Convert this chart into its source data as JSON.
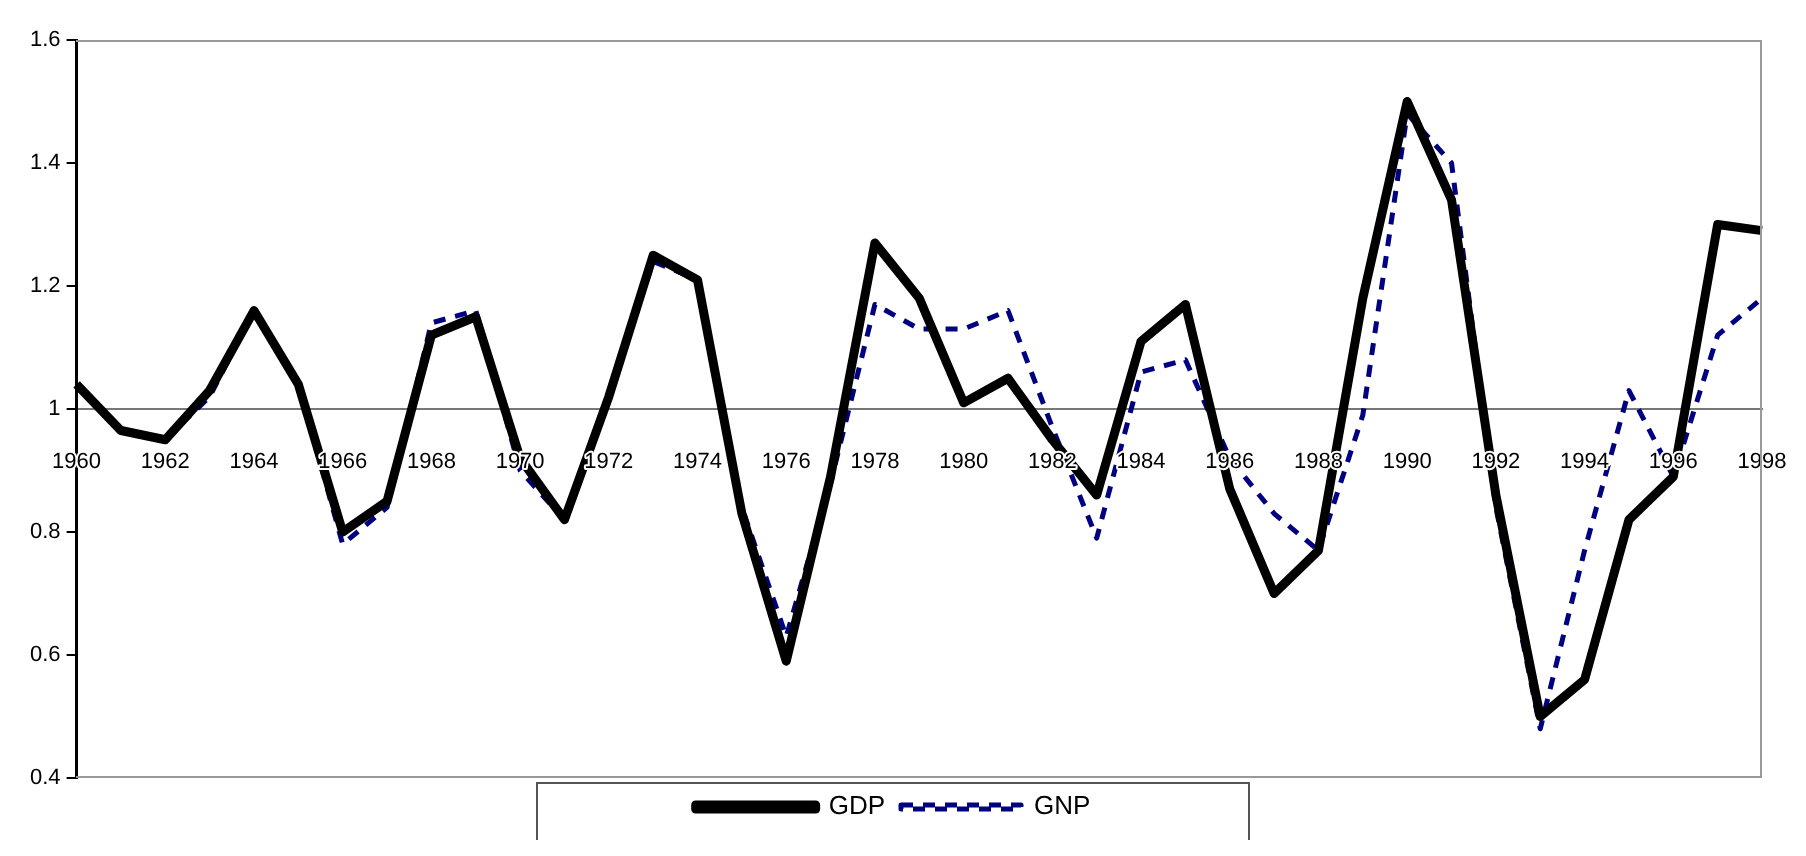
{
  "chart_data": {
    "type": "line",
    "categories": [
      "1960",
      null,
      "1962",
      null,
      "1964",
      null,
      "1966",
      null,
      "1968",
      null,
      "1970",
      null,
      "1972",
      null,
      "1974",
      null,
      "1976",
      null,
      "1978",
      null,
      "1980",
      null,
      "1982",
      null,
      "1984",
      null,
      "1986",
      null,
      "1988",
      null,
      "1990",
      null,
      "1992",
      null,
      "1994",
      null,
      "1996",
      null,
      "1998"
    ],
    "series": [
      {
        "name": "GDP",
        "color": "#000000",
        "line_style": "solid",
        "values": [
          1.04,
          0.965,
          0.95,
          1.03,
          1.16,
          1.04,
          0.8,
          0.85,
          1.12,
          1.15,
          0.92,
          0.82,
          1.02,
          1.25,
          1.21,
          0.83,
          0.59,
          0.89,
          1.27,
          1.18,
          1.01,
          1.05,
          0.95,
          0.86,
          1.11,
          1.17,
          0.87,
          0.7,
          0.77,
          1.18,
          1.5,
          1.34,
          0.86,
          0.5,
          0.56,
          0.82,
          0.89,
          1.3,
          1.29
        ]
      },
      {
        "name": "GNP",
        "color": "#000080",
        "line_style": "dashed",
        "values": [
          1.04,
          0.965,
          0.95,
          1.02,
          1.16,
          1.04,
          0.78,
          0.84,
          1.14,
          1.16,
          0.9,
          0.82,
          1.02,
          1.24,
          1.21,
          0.84,
          0.63,
          0.88,
          1.17,
          1.13,
          1.13,
          1.16,
          0.97,
          0.79,
          1.06,
          1.08,
          0.92,
          0.83,
          0.77,
          0.99,
          1.48,
          1.4,
          0.84,
          0.48,
          0.77,
          1.03,
          0.89,
          1.12,
          1.18
        ]
      }
    ],
    "ylim": [
      0.4,
      1.6
    ],
    "yticks": [
      0.4,
      0.6,
      0.8,
      1,
      1.2,
      1.4,
      1.6
    ],
    "grid": false,
    "legend": "bottom",
    "marker": "none"
  }
}
